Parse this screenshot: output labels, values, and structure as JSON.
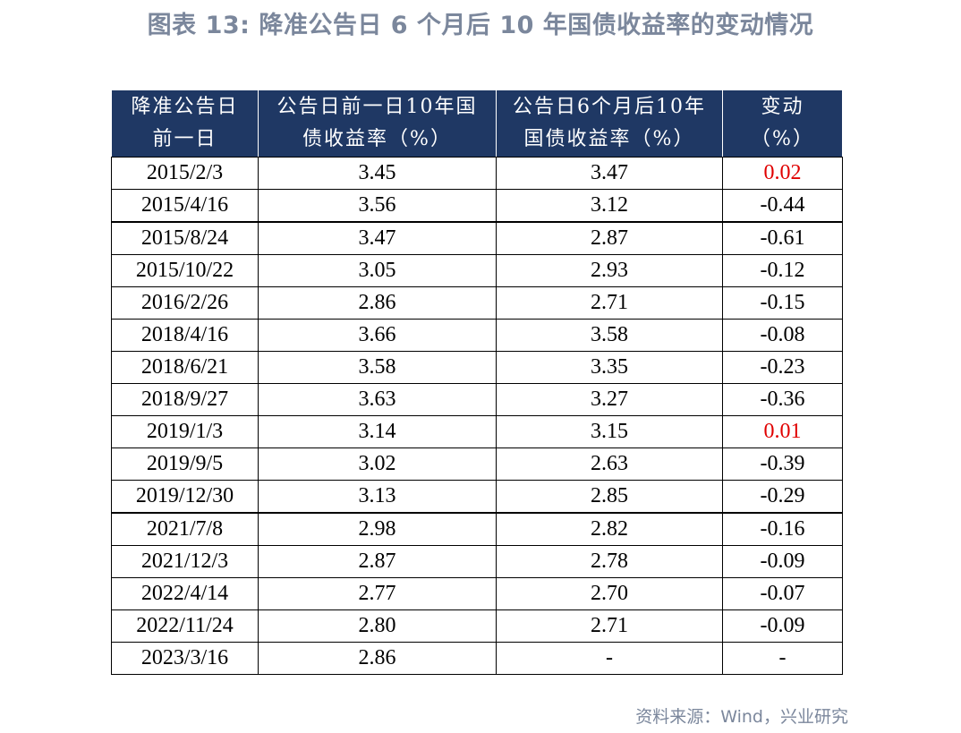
{
  "title": "图表 13: 降准公告日 6 个月后 10 年国债收益率的变动情况",
  "table": {
    "headers": [
      [
        "降准公告日",
        "前一日"
      ],
      [
        "公告日前一日10年国",
        "债收益率（%）"
      ],
      [
        "公告日6个月后10年",
        "国债收益率（%）"
      ],
      [
        "变动",
        "（%）"
      ]
    ],
    "rows": [
      [
        "2015/2/3",
        "3.45",
        "3.47",
        "0.02"
      ],
      [
        "2015/4/16",
        "3.56",
        "3.12",
        "-0.44"
      ],
      [
        "2015/8/24",
        "3.47",
        "2.87",
        "-0.61"
      ],
      [
        "2015/10/22",
        "3.05",
        "2.93",
        "-0.12"
      ],
      [
        "2016/2/26",
        "2.86",
        "2.71",
        "-0.15"
      ],
      [
        "2018/4/16",
        "3.66",
        "3.58",
        "-0.08"
      ],
      [
        "2018/6/21",
        "3.58",
        "3.35",
        "-0.23"
      ],
      [
        "2018/9/27",
        "3.63",
        "3.27",
        "-0.36"
      ],
      [
        "2019/1/3",
        "3.14",
        "3.15",
        "0.01"
      ],
      [
        "2019/9/5",
        "3.02",
        "2.63",
        "-0.39"
      ],
      [
        "2019/12/30",
        "3.13",
        "2.85",
        "-0.29"
      ],
      [
        "2021/7/8",
        "2.98",
        "2.82",
        "-0.16"
      ],
      [
        "2021/12/3",
        "2.87",
        "2.78",
        "-0.09"
      ],
      [
        "2022/4/14",
        "2.77",
        "2.70",
        "-0.07"
      ],
      [
        "2022/11/24",
        "2.80",
        "2.71",
        "-0.09"
      ],
      [
        "2023/3/16",
        "2.86",
        "-",
        "-"
      ]
    ]
  },
  "source": "资料来源：Wind，兴业研究",
  "colors": {
    "header_bg": "#1f3864",
    "title_text": "#7b879c",
    "positive_change": "#e00000"
  }
}
